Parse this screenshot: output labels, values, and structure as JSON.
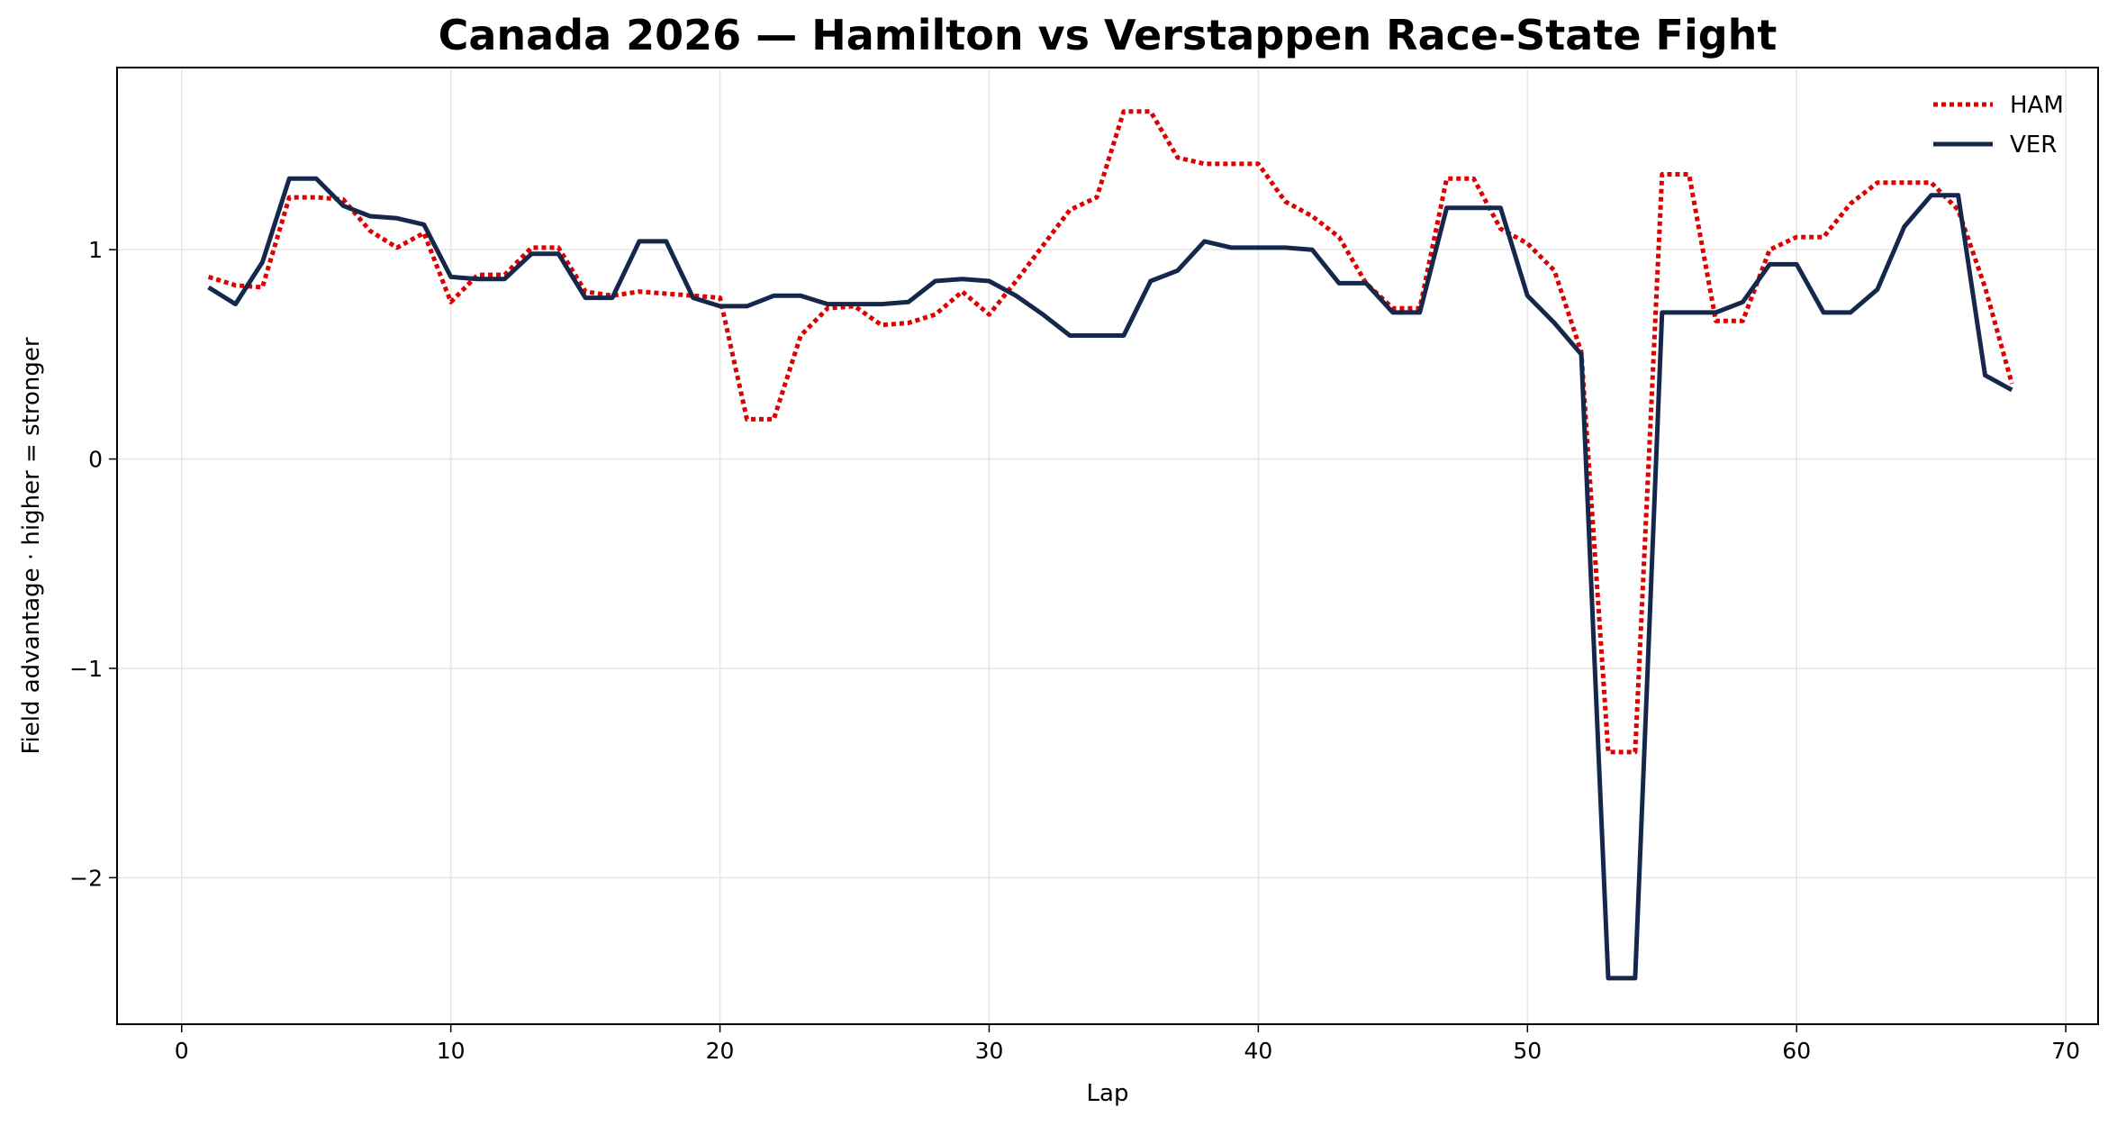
{
  "chart_data": {
    "type": "line",
    "title": "Canada 2026 — Hamilton vs Verstappen Race-State Fight",
    "xlabel": "Lap",
    "ylabel": "Field advantage · higher = stronger",
    "xlim": [
      -2.4,
      71.2
    ],
    "ylim": [
      -2.7,
      1.87
    ],
    "xticks": [
      0,
      10,
      20,
      30,
      40,
      50,
      60,
      70
    ],
    "yticks": [
      -2,
      -1,
      0,
      1
    ],
    "grid": true,
    "legend_position": "top-right",
    "x": [
      1,
      2,
      3,
      4,
      5,
      6,
      7,
      8,
      9,
      10,
      11,
      12,
      13,
      14,
      15,
      16,
      17,
      18,
      19,
      20,
      21,
      22,
      23,
      24,
      25,
      26,
      27,
      28,
      29,
      30,
      31,
      32,
      33,
      34,
      35,
      36,
      37,
      38,
      39,
      40,
      41,
      42,
      43,
      44,
      45,
      46,
      47,
      48,
      49,
      50,
      51,
      52,
      53,
      54,
      55,
      56,
      57,
      58,
      59,
      60,
      61,
      62,
      63,
      64,
      65,
      66,
      67,
      68
    ],
    "series": [
      {
        "name": "HAM",
        "color": "#dd0000",
        "style": "dotted",
        "values": [
          0.87,
          0.83,
          0.82,
          1.25,
          1.25,
          1.24,
          1.09,
          1.01,
          1.08,
          0.75,
          0.88,
          0.88,
          1.01,
          1.01,
          0.8,
          0.78,
          0.8,
          0.79,
          0.78,
          0.77,
          0.19,
          0.19,
          0.59,
          0.72,
          0.73,
          0.64,
          0.65,
          0.69,
          0.8,
          0.69,
          0.85,
          1.02,
          1.19,
          1.25,
          1.66,
          1.66,
          1.44,
          1.41,
          1.41,
          1.41,
          1.23,
          1.16,
          1.06,
          0.84,
          0.72,
          0.72,
          1.34,
          1.34,
          1.1,
          1.03,
          0.9,
          0.51,
          -1.4,
          -1.4,
          1.36,
          1.36,
          0.66,
          0.66,
          1.0,
          1.06,
          1.06,
          1.22,
          1.32,
          1.32,
          1.32,
          1.19,
          0.82,
          0.36
        ]
      },
      {
        "name": "VER",
        "color": "#15284b",
        "style": "solid",
        "values": [
          0.82,
          0.74,
          0.94,
          1.34,
          1.34,
          1.21,
          1.16,
          1.15,
          1.12,
          0.87,
          0.86,
          0.86,
          0.98,
          0.98,
          0.77,
          0.77,
          1.04,
          1.04,
          0.77,
          0.73,
          0.73,
          0.78,
          0.78,
          0.74,
          0.74,
          0.74,
          0.75,
          0.85,
          0.86,
          0.85,
          0.78,
          0.69,
          0.59,
          0.59,
          0.59,
          0.85,
          0.9,
          1.04,
          1.01,
          1.01,
          1.01,
          1.0,
          0.84,
          0.84,
          0.7,
          0.7,
          1.2,
          1.2,
          1.2,
          0.78,
          0.65,
          0.5,
          -2.48,
          -2.48,
          0.7,
          0.7,
          0.7,
          0.75,
          0.93,
          0.93,
          0.7,
          0.7,
          0.81,
          1.11,
          1.26,
          1.26,
          0.4,
          0.33
        ]
      }
    ]
  }
}
